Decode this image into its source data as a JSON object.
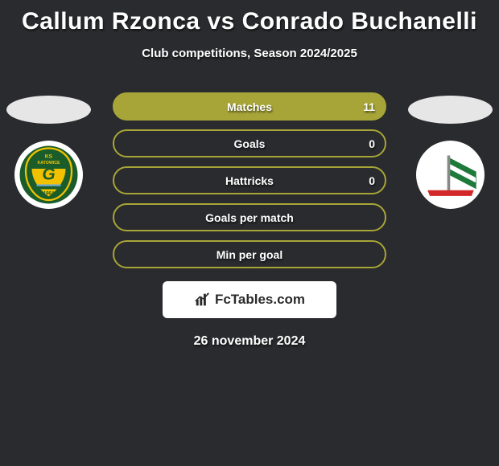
{
  "header": {
    "title": "Callum Rzonca vs Conrado Buchanelli",
    "subtitle": "Club competitions, Season 2024/2025"
  },
  "stats": {
    "rows": [
      {
        "label": "Matches",
        "value_right": "11",
        "border_color": "#a7a538",
        "fill_color": "#a7a538"
      },
      {
        "label": "Goals",
        "value_right": "0",
        "border_color": "#a7a538",
        "fill_color": "transparent"
      },
      {
        "label": "Hattricks",
        "value_right": "0",
        "border_color": "#a7a538",
        "fill_color": "transparent"
      },
      {
        "label": "Goals per match",
        "value_right": "",
        "border_color": "#a7a538",
        "fill_color": "transparent"
      },
      {
        "label": "Min per goal",
        "value_right": "",
        "border_color": "#a7a538",
        "fill_color": "transparent"
      }
    ]
  },
  "ellipse_color": "#e6e6e6",
  "clubs": {
    "left": {
      "name": "gks-katowice",
      "crest_primary": "#1b5d2a",
      "crest_secondary": "#f2c200",
      "crest_text_top": "KS",
      "crest_text_mid": "KATOWICE",
      "crest_text_year": "1964"
    },
    "right": {
      "name": "lechia-gdansk",
      "flag_green": "#1e7a3a",
      "flag_white": "#ffffff",
      "flag_red": "#d22828"
    }
  },
  "brand": {
    "text": "FcTables.com",
    "icon_color": "#2b2b2b"
  },
  "date": "26 november 2024",
  "colors": {
    "background": "#2a2b2e",
    "text": "#ffffff"
  }
}
